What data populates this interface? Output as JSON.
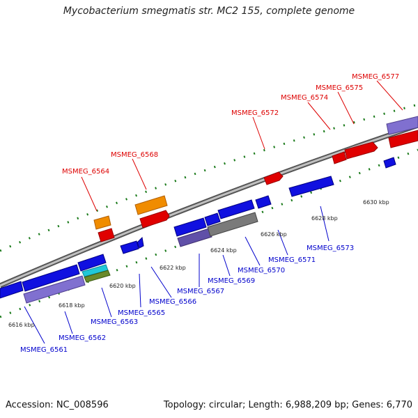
{
  "title": "Mycobacterium smegmatis str. MC2 155, complete genome",
  "footer": {
    "accession": "Accession: NC_008596",
    "summary": "Topology: circular; Length: 6,988,209 bp; Genes: 6,770"
  },
  "colors": {
    "forward_label": "#dd0000",
    "reverse_label": "#0000cc",
    "backbone": "#808080",
    "tick": "#1a7a1a"
  },
  "kbp_labels": [
    "6616 kbp",
    "6618 kbp",
    "6620 kbp",
    "6622 kbp",
    "6624 kbp",
    "6626 kbp",
    "6628 kbp",
    "6630 kbp"
  ],
  "forward_genes": [
    "MSMEG_6564",
    "MSMEG_6568",
    "MSMEG_6572",
    "MSMEG_6574",
    "MSMEG_6575",
    "MSMEG_6577"
  ],
  "reverse_genes": [
    "MSMEG_6561",
    "MSMEG_6562",
    "MSMEG_6563",
    "MSMEG_6565",
    "MSMEG_6566",
    "MSMEG_6567",
    "MSMEG_6569",
    "MSMEG_6570",
    "MSMEG_6571",
    "MSMEG_6573"
  ]
}
